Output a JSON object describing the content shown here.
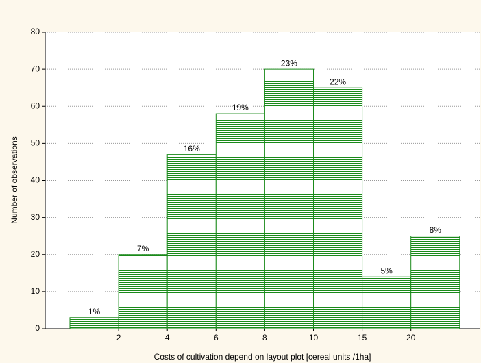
{
  "chart_data": {
    "type": "bar",
    "x_label": "Costs of cultivation depend on layout plot [cereal units /1ha]",
    "y_label": "Number of observations",
    "categories": [
      null,
      null,
      null,
      null,
      null,
      null,
      null,
      null
    ],
    "values": [
      3,
      20,
      47,
      58,
      70,
      65,
      14,
      25
    ],
    "value_labels": [
      "1%",
      "7%",
      "16%",
      "19%",
      "23%",
      "22%",
      "5%",
      "8%"
    ],
    "edge_labels": [
      2,
      4,
      6,
      8,
      10,
      15,
      20
    ],
    "ylim": [
      0,
      80
    ],
    "yticks": [
      0,
      10,
      20,
      30,
      40,
      50,
      60,
      70,
      80
    ],
    "color": "#1a8a1a",
    "grid": true
  }
}
